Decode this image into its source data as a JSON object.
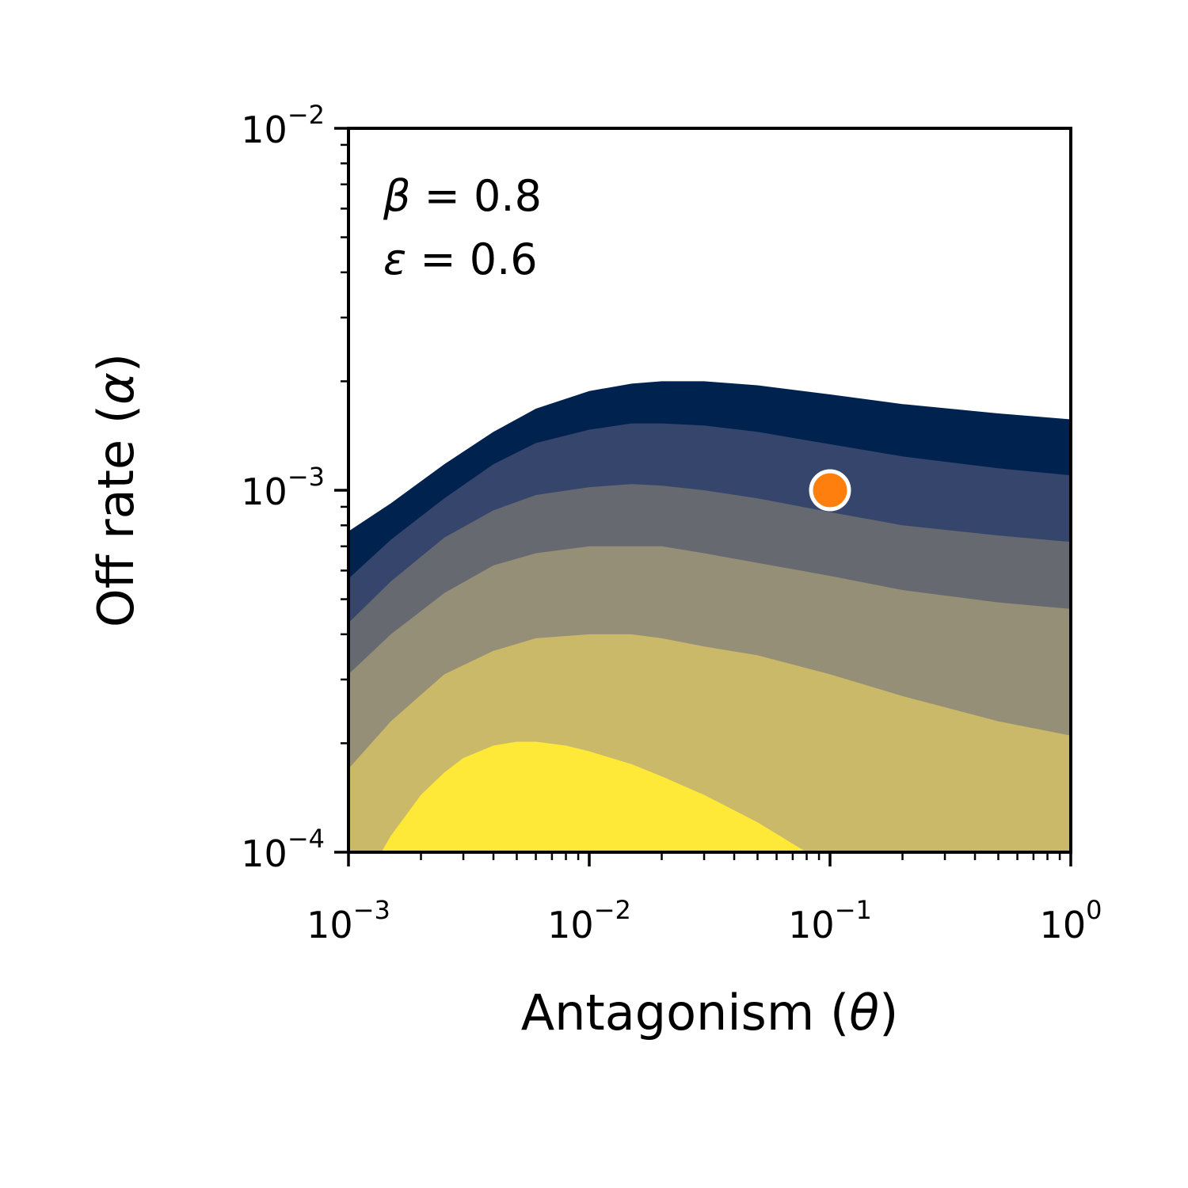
{
  "chart_data": {
    "type": "contourf",
    "xlabel": {
      "text": "Antagonism (",
      "symbol": "θ",
      "close": ")"
    },
    "ylabel": {
      "text": "Off rate (",
      "symbol": "α",
      "close": ")"
    },
    "xscale": "log",
    "yscale": "log",
    "xlim": [
      0.001,
      1
    ],
    "ylim": [
      0.0001,
      0.01
    ],
    "x_ticks": [
      {
        "value": 0.001,
        "base": "10",
        "exp": "−3"
      },
      {
        "value": 0.01,
        "base": "10",
        "exp": "−2"
      },
      {
        "value": 0.1,
        "base": "10",
        "exp": "−1"
      },
      {
        "value": 1,
        "base": "10",
        "exp": "0"
      }
    ],
    "y_ticks": [
      {
        "value": 0.0001,
        "base": "10",
        "exp": "−4"
      },
      {
        "value": 0.001,
        "base": "10",
        "exp": "−3"
      },
      {
        "value": 0.01,
        "base": "10",
        "exp": "−2"
      }
    ],
    "grid": false,
    "colormap": "cividis",
    "annotations": [
      {
        "symbol": "β",
        "text": " = 0.8",
        "position": "top-left"
      },
      {
        "symbol": "ε",
        "text": " = 0.6",
        "position": "top-left"
      }
    ],
    "marker": {
      "x": 0.1,
      "y": 0.001,
      "color": "#ff7f0e",
      "edge_color": "#ffffff"
    },
    "contour_levels": [
      {
        "color": "#00224e",
        "boundary_x": [
          0.001,
          0.0015,
          0.0025,
          0.004,
          0.006,
          0.01,
          0.015,
          0.02,
          0.03,
          0.05,
          0.1,
          0.2,
          0.5,
          1
        ],
        "boundary_y": [
          0.00077,
          0.00092,
          0.00118,
          0.00145,
          0.00168,
          0.00188,
          0.00197,
          0.002,
          0.002,
          0.00195,
          0.00184,
          0.00173,
          0.00163,
          0.00157
        ]
      },
      {
        "color": "#35456c",
        "boundary_x": [
          0.001,
          0.0015,
          0.0025,
          0.004,
          0.006,
          0.01,
          0.015,
          0.02,
          0.03,
          0.05,
          0.1,
          0.2,
          0.5,
          1
        ],
        "boundary_y": [
          0.00057,
          0.00073,
          0.00095,
          0.00118,
          0.00135,
          0.00147,
          0.00153,
          0.00153,
          0.00151,
          0.00145,
          0.00134,
          0.00124,
          0.00115,
          0.0011
        ]
      },
      {
        "color": "#666970",
        "boundary_x": [
          0.001,
          0.0015,
          0.0025,
          0.004,
          0.006,
          0.01,
          0.015,
          0.02,
          0.03,
          0.05,
          0.1,
          0.2,
          0.5,
          1
        ],
        "boundary_y": [
          0.00043,
          0.00056,
          0.00074,
          0.00088,
          0.00097,
          0.00102,
          0.00104,
          0.00103,
          0.001,
          0.00095,
          0.00087,
          0.0008,
          0.00075,
          0.00072
        ]
      },
      {
        "color": "#958f78",
        "boundary_x": [
          0.001,
          0.0015,
          0.0025,
          0.004,
          0.006,
          0.01,
          0.015,
          0.02,
          0.03,
          0.05,
          0.1,
          0.2,
          0.5,
          1
        ],
        "boundary_y": [
          0.00031,
          0.0004,
          0.00052,
          0.00062,
          0.00067,
          0.0007,
          0.0007,
          0.0007,
          0.00067,
          0.00063,
          0.00058,
          0.00053,
          0.00049,
          0.00047
        ]
      },
      {
        "color": "#cab969",
        "boundary_x": [
          0.001,
          0.0015,
          0.0025,
          0.004,
          0.006,
          0.01,
          0.015,
          0.02,
          0.03,
          0.05,
          0.1,
          0.2,
          0.5,
          1
        ],
        "boundary_y": [
          0.00017,
          0.00023,
          0.00031,
          0.00036,
          0.00039,
          0.0004,
          0.0004,
          0.00039,
          0.00037,
          0.00035,
          0.00031,
          0.00027,
          0.00023,
          0.00021
        ]
      },
      {
        "color": "#fee838",
        "boundary_x": [
          0.00137,
          0.0015,
          0.002,
          0.0025,
          0.003,
          0.004,
          0.005,
          0.006,
          0.008,
          0.01,
          0.015,
          0.02,
          0.03,
          0.05,
          0.08
        ],
        "boundary_y": [
          0.0001,
          0.000111,
          0.000144,
          0.000166,
          0.000182,
          0.000197,
          0.000202,
          0.000202,
          0.000197,
          0.00019,
          0.000175,
          0.000162,
          0.000144,
          0.000121,
          0.0001
        ]
      }
    ]
  }
}
